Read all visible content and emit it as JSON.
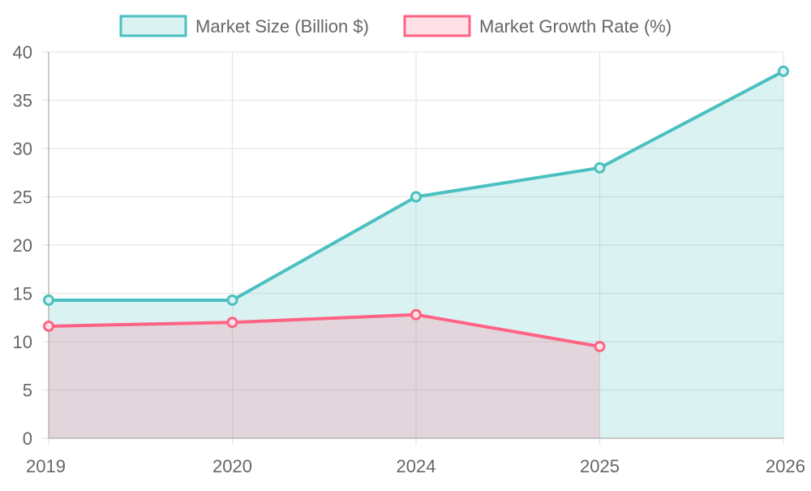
{
  "chart_data": {
    "type": "area",
    "categories": [
      "2019",
      "2020",
      "2024",
      "2025",
      "2026"
    ],
    "series": [
      {
        "name": "Market Size (Billion $)",
        "values": [
          14.3,
          14.3,
          25,
          28,
          38
        ],
        "stroke": "#4bc0c0",
        "fill": "rgba(75,192,192,0.2)",
        "legend_fill": "#dbf2f2"
      },
      {
        "name": "Market Growth Rate (%)",
        "values": [
          11.6,
          12,
          12.8,
          9.5,
          null
        ],
        "stroke": "#ff6384",
        "fill": "rgba(255,99,132,0.2)",
        "legend_fill": "#ffe0e6"
      }
    ],
    "y_ticks": [
      "0",
      "5",
      "10",
      "15",
      "20",
      "25",
      "30",
      "35",
      "40"
    ],
    "ylim": [
      0,
      40
    ],
    "title": "",
    "xlabel": "",
    "ylabel": "",
    "grid": true,
    "legend_position": "top-center",
    "colors": {
      "grid": "#e5e5e5",
      "axis": "#b8b8b8",
      "tick_text": "#666666",
      "legend_text": "#666666"
    }
  }
}
